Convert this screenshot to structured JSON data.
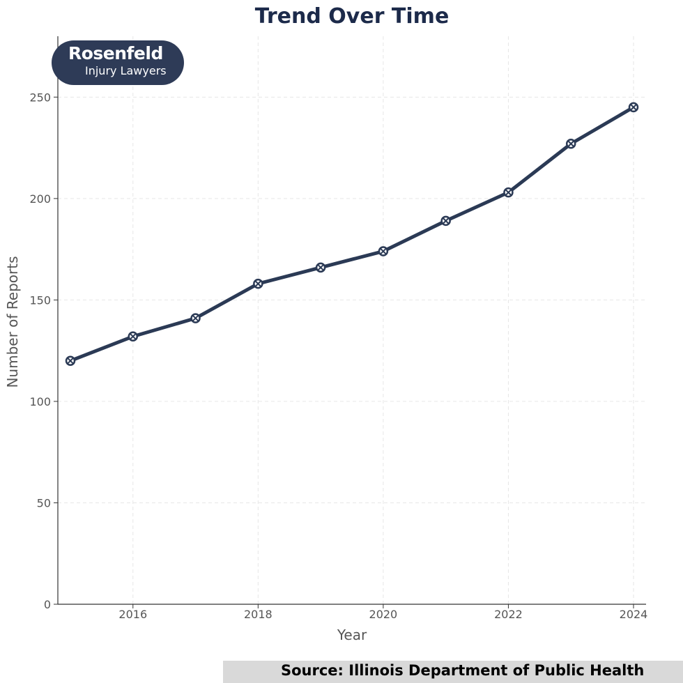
{
  "chart_data": {
    "type": "line",
    "title": "Trend Over Time",
    "xlabel": "Year",
    "ylabel": "Number of Reports",
    "x": [
      2015,
      2016,
      2017,
      2018,
      2019,
      2020,
      2021,
      2022,
      2023,
      2024
    ],
    "values": [
      120,
      132,
      141,
      158,
      166,
      174,
      189,
      203,
      227,
      245
    ],
    "xticks": [
      2016,
      2018,
      2020,
      2022,
      2024
    ],
    "yticks": [
      0,
      50,
      100,
      150,
      200,
      250
    ],
    "xlim": [
      2015,
      2024
    ],
    "ylim": [
      0,
      280
    ],
    "grid": true,
    "line_color": "#2b3a55",
    "marker": "x-in-circle"
  },
  "logo": {
    "brand": "Rosenfeld",
    "sub": "Injury Lawyers",
    "color": "#2e3b57"
  },
  "source": "Source: Illinois Department of Public Health"
}
